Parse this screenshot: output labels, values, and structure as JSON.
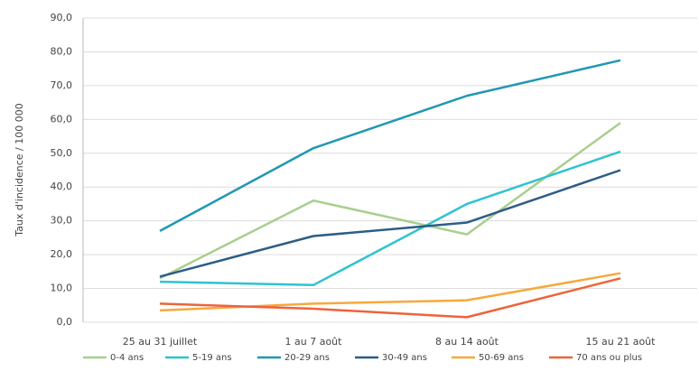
{
  "chart_data": {
    "type": "line",
    "y_label": "Taux d'incidence / 100 000",
    "categories": [
      "25 au 31 juillet",
      "1 au 7 août",
      "8 au 14 août",
      "15 au 21 août"
    ],
    "series": [
      {
        "name": "0-4 ans",
        "color": "#a8cf8e",
        "values": [
          13,
          36,
          26,
          59
        ]
      },
      {
        "name": "5-19 ans",
        "color": "#2ec3cf",
        "values": [
          12,
          11,
          35,
          50.5
        ]
      },
      {
        "name": "20-29 ans",
        "color": "#1f98b4",
        "values": [
          27,
          51.5,
          67,
          77.5
        ]
      },
      {
        "name": "30-49 ans",
        "color": "#2d5d87",
        "values": [
          13.5,
          25.5,
          29.5,
          45
        ]
      },
      {
        "name": "50-69 ans",
        "color": "#f7a83c",
        "values": [
          3.5,
          5.5,
          6.5,
          14.5
        ]
      },
      {
        "name": "70 ans ou plus",
        "color": "#ee633a",
        "values": [
          5.5,
          4,
          1.5,
          13
        ]
      }
    ],
    "ylim": [
      0,
      90
    ],
    "yticks": [
      {
        "value": 0,
        "label": "0,0"
      },
      {
        "value": 10,
        "label": "10,0"
      },
      {
        "value": 20,
        "label": "20,0"
      },
      {
        "value": 30,
        "label": "30,0"
      },
      {
        "value": 40,
        "label": "40,0"
      },
      {
        "value": 50,
        "label": "50,0"
      },
      {
        "value": 60,
        "label": "60,0"
      },
      {
        "value": 70,
        "label": "70,0"
      },
      {
        "value": 80,
        "label": "80,0"
      },
      {
        "value": 90,
        "label": "90,0"
      }
    ],
    "grid": true
  }
}
